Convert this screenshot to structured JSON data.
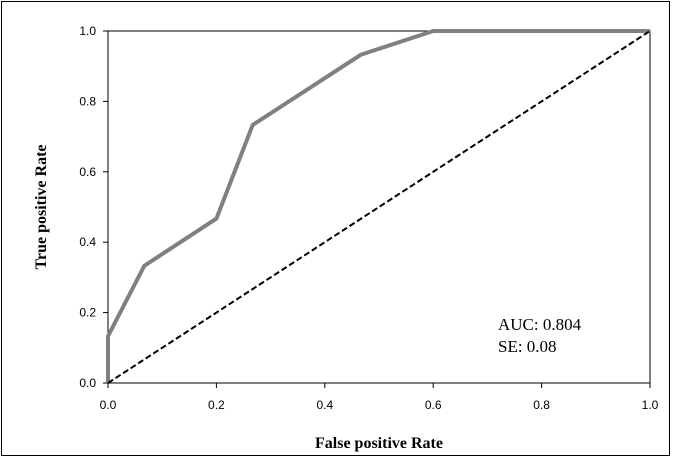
{
  "chart_data": {
    "type": "line",
    "xlabel": "False positive Rate",
    "ylabel": "True positive Rate",
    "xlim": [
      0,
      1
    ],
    "ylim": [
      0,
      1
    ],
    "xticks": [
      "0.0",
      "0.2",
      "0.4",
      "0.6",
      "0.8",
      "1.0"
    ],
    "yticks": [
      "0.0",
      "0.2",
      "0.4",
      "0.6",
      "0.8",
      "1.0"
    ],
    "grid": false,
    "series": [
      {
        "style": "solid",
        "color": "#808080",
        "x": [
          0.0,
          0.0,
          0.067,
          0.2,
          0.267,
          0.467,
          0.6,
          1.0
        ],
        "y": [
          0.0,
          0.133,
          0.333,
          0.467,
          0.733,
          0.933,
          1.0,
          1.0
        ]
      },
      {
        "style": "dashed",
        "color": "#000000",
        "x": [
          0.0,
          1.0
        ],
        "y": [
          0.0,
          1.0
        ]
      }
    ],
    "annotations": [
      "AUC: 0.804",
      "SE: 0.08"
    ]
  }
}
